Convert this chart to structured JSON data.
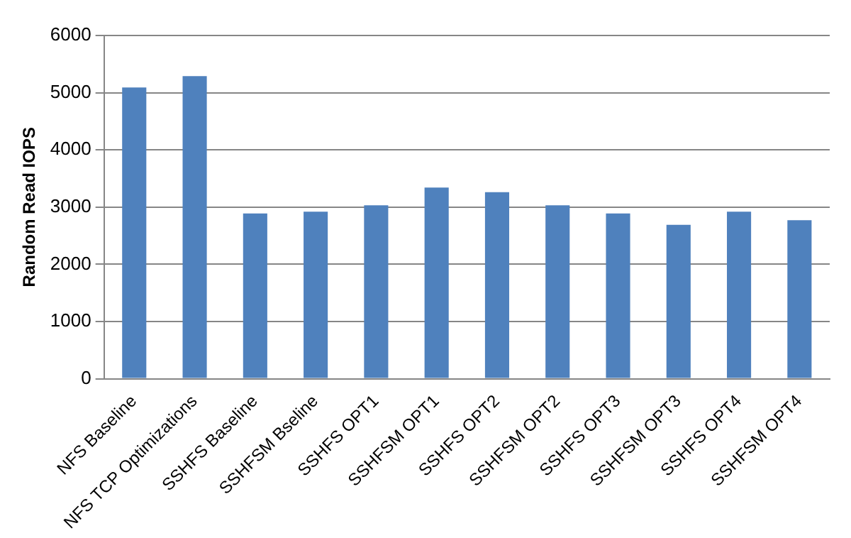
{
  "chart_data": {
    "type": "bar",
    "ylabel": "Random Read IOPS",
    "categories": [
      "NFS Baseline",
      "NFS TCP Optimizations",
      "SSHFS Baseline",
      "SSHFSM Bseline",
      "SSHFS OPT1",
      "SSHFSM OPT1",
      "SSHFS OPT2",
      "SSHFSM OPT2",
      "SSHFS OPT3",
      "SSHFSM OPT3",
      "SSHFS OPT4",
      "SSHFSM OPT4"
    ],
    "values": [
      5090,
      5290,
      2890,
      2920,
      3030,
      3340,
      3260,
      3030,
      2890,
      2690,
      2920,
      2770
    ],
    "color": "#4f81bd",
    "ylim": [
      0,
      6000
    ],
    "yticks": [
      0,
      1000,
      2000,
      3000,
      4000,
      5000,
      6000
    ],
    "grid": "y",
    "legend": false
  }
}
